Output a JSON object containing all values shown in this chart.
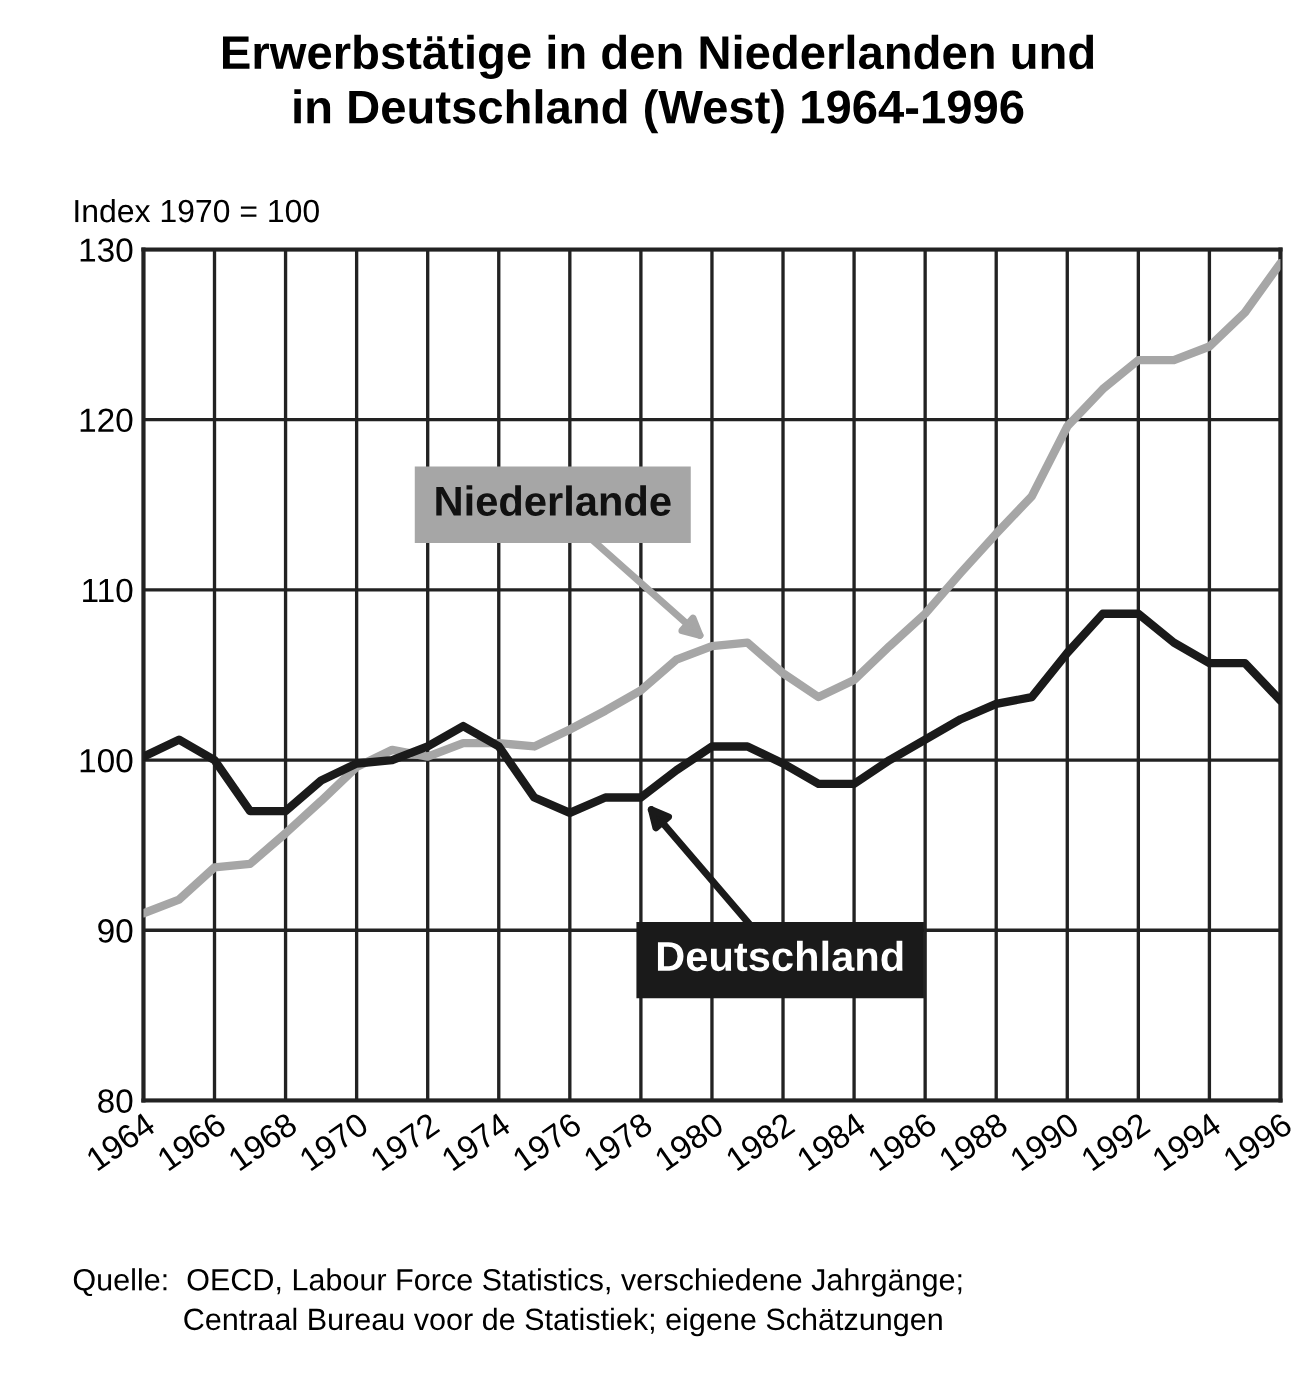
{
  "chart_data": {
    "type": "line",
    "title": "Erwerbstätige in den Niederlanden und\nin Deutschland (West) 1964-1996",
    "ylabel": "Index 1970 = 100",
    "x": [
      1964,
      1965,
      1966,
      1967,
      1968,
      1969,
      1970,
      1971,
      1972,
      1973,
      1974,
      1975,
      1976,
      1977,
      1978,
      1979,
      1980,
      1981,
      1982,
      1983,
      1984,
      1985,
      1986,
      1987,
      1988,
      1989,
      1990,
      1991,
      1992,
      1993,
      1994,
      1995,
      1996
    ],
    "series": [
      {
        "name": "Niederlande",
        "color": "#a6a6a6",
        "values": [
          91.0,
          91.8,
          93.7,
          93.9,
          95.7,
          97.6,
          99.6,
          100.6,
          100.2,
          101.0,
          101.0,
          100.8,
          101.8,
          102.9,
          104.1,
          105.9,
          106.7,
          106.9,
          105.1,
          103.7,
          104.7,
          106.7,
          108.6,
          111.0,
          113.3,
          115.5,
          119.6,
          121.8,
          123.5,
          123.5,
          124.3,
          126.3,
          129.2
        ]
      },
      {
        "name": "Deutschland",
        "color": "#1a1a1a",
        "values": [
          100.2,
          101.2,
          100.0,
          97.0,
          97.0,
          98.8,
          99.8,
          100.0,
          100.8,
          102.0,
          100.8,
          97.8,
          96.9,
          97.8,
          97.8,
          99.4,
          100.8,
          100.8,
          99.8,
          98.6,
          98.6,
          100.0,
          101.2,
          102.4,
          103.3,
          103.7,
          106.3,
          108.6,
          108.6,
          106.9,
          105.7,
          105.7,
          103.5
        ]
      }
    ],
    "xlim": [
      1964,
      1996
    ],
    "xticks": [
      1964,
      1966,
      1968,
      1970,
      1972,
      1974,
      1976,
      1978,
      1980,
      1982,
      1984,
      1986,
      1988,
      1990,
      1992,
      1994,
      1996
    ],
    "ylim": [
      80,
      130
    ],
    "yticks": [
      80,
      90,
      100,
      110,
      120,
      130
    ],
    "grid": true,
    "legend": false,
    "annotations": [
      "Quelle:  OECD, Labour Force Statistics, verschiedene Jahrgänge;\n             Centraal Bureau voor de Statistiek; eigene Schätzungen"
    ]
  }
}
